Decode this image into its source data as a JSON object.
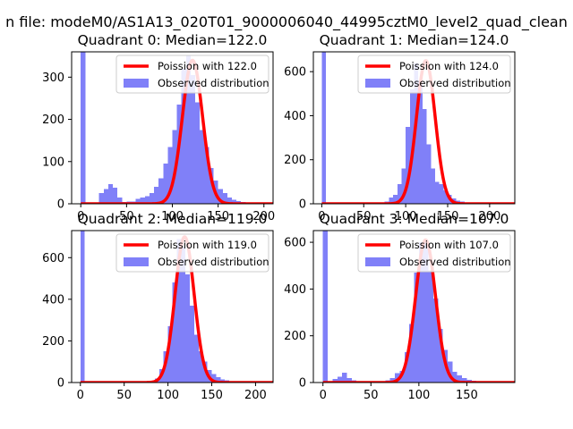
{
  "figure": {
    "suptitle": "n file: modeM0/AS1A13_020T01_9000006040_44995cztM0_level2_quad_clean"
  },
  "chart_data": [
    {
      "type": "bar",
      "title": "Quadrant 0: Median=122.0",
      "xlim": [
        -10,
        210
      ],
      "ylim": [
        0,
        360
      ],
      "xticks": [
        0,
        50,
        100,
        150,
        200
      ],
      "yticks": [
        0,
        100,
        200,
        300
      ],
      "hist": {
        "name": "Observed distribution",
        "x_start": 0,
        "bin_width": 5,
        "values": [
          360,
          2,
          2,
          3,
          25,
          35,
          47,
          38,
          15,
          4,
          5,
          5,
          12,
          15,
          18,
          25,
          40,
          60,
          95,
          135,
          175,
          235,
          320,
          350,
          305,
          240,
          175,
          135,
          85,
          55,
          35,
          25,
          15,
          10,
          6,
          4,
          3,
          2,
          2,
          2
        ]
      },
      "fit": {
        "name": "Poission with 122.0",
        "mean": 122.0,
        "peak": 340
      },
      "legend_position": "upper-right",
      "colors": {
        "hist": "#8080f8",
        "fit": "#ff0000"
      }
    },
    {
      "type": "bar",
      "title": "Quadrant 1: Median=124.0",
      "xlim": [
        -10,
        230
      ],
      "ylim": [
        0,
        690
      ],
      "xticks": [
        0,
        50,
        100,
        150,
        200
      ],
      "yticks": [
        0,
        200,
        400,
        600
      ],
      "hist": {
        "name": "Observed distribution",
        "x_start": 0,
        "bin_width": 5,
        "values": [
          690,
          2,
          1,
          1,
          1,
          2,
          2,
          3,
          3,
          3,
          3,
          3,
          3,
          3,
          5,
          10,
          28,
          40,
          90,
          160,
          350,
          520,
          640,
          560,
          430,
          270,
          160,
          100,
          90,
          60,
          40,
          25,
          15,
          10,
          6,
          4,
          3,
          2,
          2,
          2,
          2,
          2,
          2,
          2
        ]
      },
      "fit": {
        "name": "Poission with 124.0",
        "mean": 124.0,
        "peak": 650
      },
      "legend_position": "upper-right",
      "colors": {
        "hist": "#8080f8",
        "fit": "#ff0000"
      }
    },
    {
      "type": "bar",
      "title": "Quadrant 2: Median=119.0",
      "xlim": [
        -10,
        220
      ],
      "ylim": [
        0,
        730
      ],
      "xticks": [
        0,
        50,
        100,
        150,
        200
      ],
      "yticks": [
        0,
        200,
        400,
        600
      ],
      "hist": {
        "name": "Observed distribution",
        "x_start": 0,
        "bin_width": 5,
        "values": [
          730,
          2,
          2,
          2,
          2,
          2,
          2,
          2,
          2,
          2,
          2,
          2,
          2,
          2,
          3,
          5,
          8,
          20,
          65,
          150,
          270,
          480,
          690,
          650,
          520,
          370,
          230,
          150,
          100,
          60,
          40,
          25,
          15,
          10,
          6,
          4,
          3,
          2,
          2,
          2,
          2
        ]
      },
      "fit": {
        "name": "Poission with 119.0",
        "mean": 119.0,
        "peak": 700
      },
      "legend_position": "upper-right",
      "colors": {
        "hist": "#8080f8",
        "fit": "#ff0000"
      }
    },
    {
      "type": "bar",
      "title": "Quadrant 3: Median=107.0",
      "xlim": [
        -10,
        200
      ],
      "ylim": [
        0,
        650
      ],
      "xticks": [
        0,
        50,
        100,
        150
      ],
      "yticks": [
        0,
        200,
        400,
        600
      ],
      "hist": {
        "name": "Observed distribution",
        "x_start": 0,
        "bin_width": 5,
        "values": [
          650,
          2,
          15,
          25,
          42,
          20,
          10,
          5,
          5,
          5,
          5,
          5,
          5,
          10,
          20,
          40,
          50,
          130,
          250,
          470,
          600,
          600,
          480,
          360,
          230,
          140,
          90,
          45,
          30,
          20,
          12,
          8,
          5,
          4,
          3,
          2,
          2
        ]
      },
      "fit": {
        "name": "Poission with 107.0",
        "mean": 107.0,
        "peak": 610
      },
      "legend_position": "upper-right",
      "colors": {
        "hist": "#8080f8",
        "fit": "#ff0000"
      }
    }
  ]
}
